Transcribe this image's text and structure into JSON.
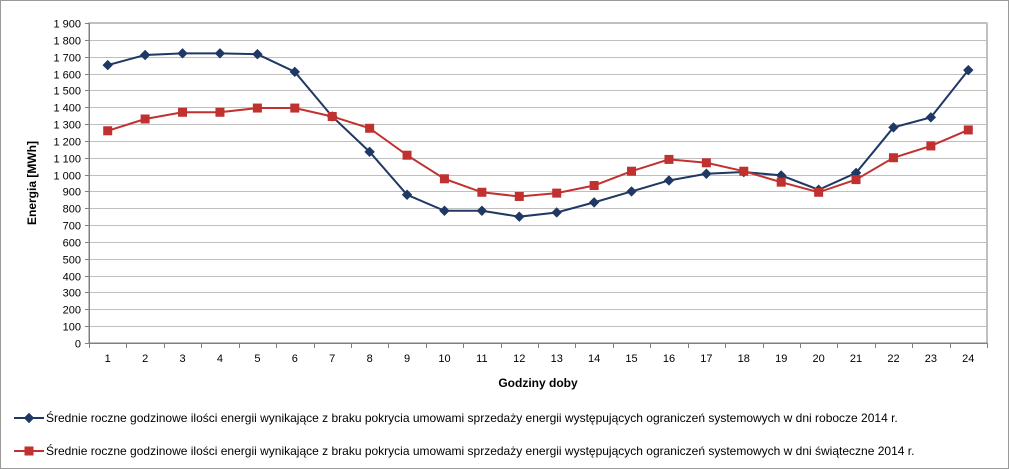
{
  "chart_data": {
    "type": "line",
    "xlabel": "Godziny doby",
    "ylabel": "Energia [MWh]",
    "ylim": [
      0,
      1900
    ],
    "ytick_step": 100,
    "ytick_labels": [
      "0",
      "100",
      "200",
      "300",
      "400",
      "500",
      "600",
      "700",
      "800",
      "900",
      "1 000",
      "1 100",
      "1 200",
      "1 300",
      "1 400",
      "1 500",
      "1 600",
      "1 700",
      "1 800",
      "1 900"
    ],
    "categories": [
      "1",
      "2",
      "3",
      "4",
      "5",
      "6",
      "7",
      "8",
      "9",
      "10",
      "11",
      "12",
      "13",
      "14",
      "15",
      "16",
      "17",
      "18",
      "19",
      "20",
      "21",
      "22",
      "23",
      "24"
    ],
    "grid": true,
    "legend_position": "bottom",
    "series": [
      {
        "name": "Średnie roczne godzinowe ilości energii wynikające z braku pokrycia umowami sprzedaży energii występujących ograniczeń systemowych w dni robocze 2014 r.",
        "color": "#1f3864",
        "marker": "diamond",
        "values": [
          1650,
          1710,
          1720,
          1720,
          1715,
          1610,
          1345,
          1135,
          880,
          785,
          785,
          750,
          775,
          835,
          900,
          965,
          1005,
          1015,
          995,
          910,
          1010,
          1280,
          1340,
          1620
        ]
      },
      {
        "name": "Średnie roczne godzinowe ilości energii wynikające z braku pokrycia umowami sprzedaży energii występujących ograniczeń systemowych w dni świąteczne 2014 r.",
        "color": "#c0312f",
        "marker": "square",
        "values": [
          1260,
          1330,
          1370,
          1370,
          1395,
          1395,
          1345,
          1275,
          1115,
          975,
          895,
          870,
          890,
          935,
          1020,
          1090,
          1070,
          1020,
          955,
          895,
          970,
          1100,
          1170,
          1265
        ]
      }
    ]
  }
}
